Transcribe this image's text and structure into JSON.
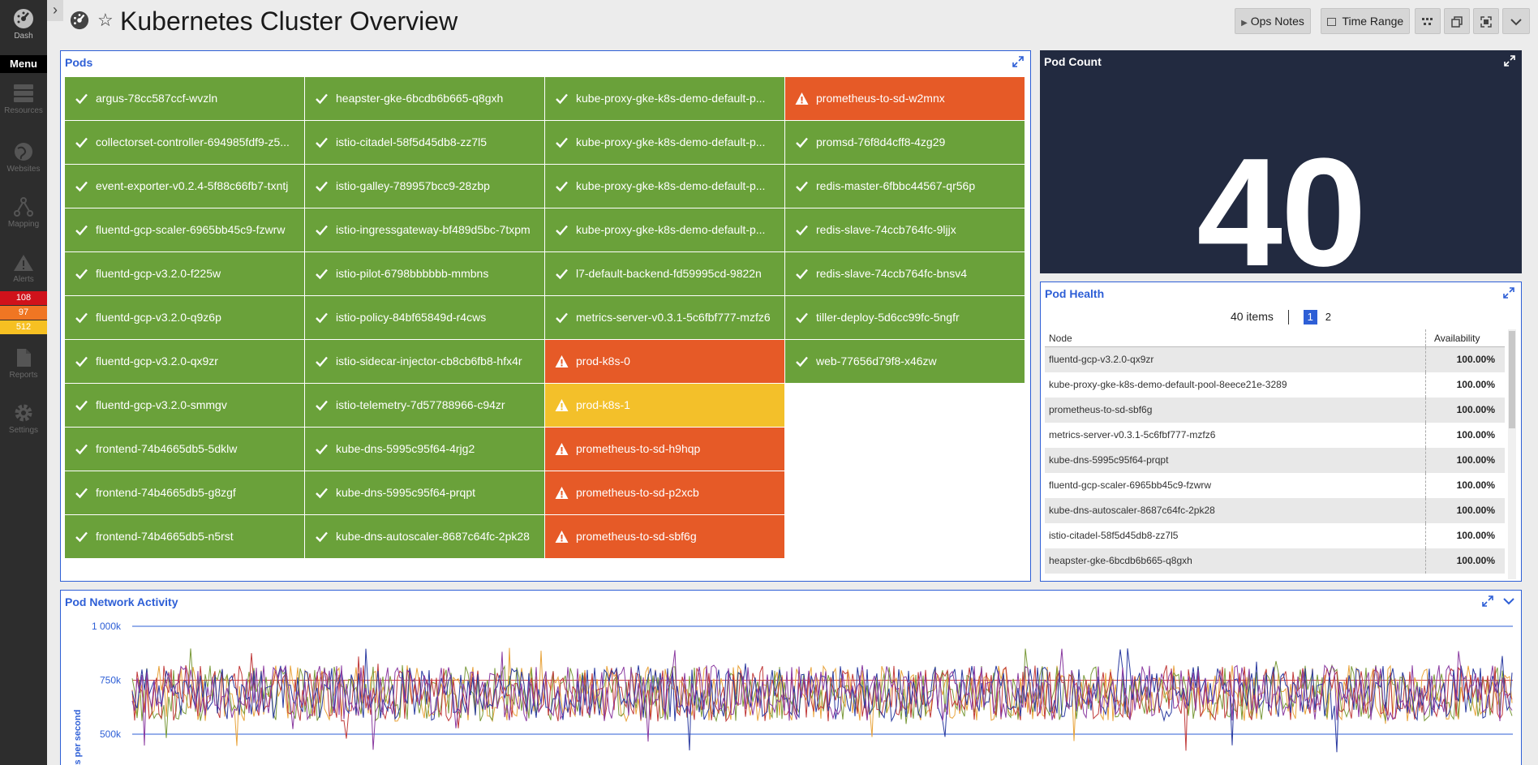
{
  "nav": {
    "dash_label": "Dash",
    "menu_label": "Menu",
    "items": [
      "Resources",
      "Websites",
      "Mapping",
      "Alerts",
      "Reports",
      "Settings"
    ],
    "alert_counts": [
      {
        "value": "108",
        "color": "#d0121b"
      },
      {
        "value": "97",
        "color": "#f07623"
      },
      {
        "value": "512",
        "color": "#f6c022"
      }
    ]
  },
  "header": {
    "title": "Kubernetes Cluster Overview",
    "ops_notes": "Ops Notes",
    "time_range": "Time Range"
  },
  "colors": {
    "ok": "#6aa13a",
    "critical": "#e65a27",
    "warning": "#f3c02a",
    "accent": "#2e5fd6"
  },
  "pods_panel": {
    "title": "Pods",
    "columns": [
      [
        {
          "name": "argus-78cc587ccf-wvzln",
          "status": "ok"
        },
        {
          "name": "collectorset-controller-694985fdf9-z5...",
          "status": "ok"
        },
        {
          "name": "event-exporter-v0.2.4-5f88c66fb7-txntj",
          "status": "ok"
        },
        {
          "name": "fluentd-gcp-scaler-6965bb45c9-fzwrw",
          "status": "ok"
        },
        {
          "name": "fluentd-gcp-v3.2.0-f225w",
          "status": "ok"
        },
        {
          "name": "fluentd-gcp-v3.2.0-q9z6p",
          "status": "ok"
        },
        {
          "name": "fluentd-gcp-v3.2.0-qx9zr",
          "status": "ok"
        },
        {
          "name": "fluentd-gcp-v3.2.0-smmgv",
          "status": "ok"
        },
        {
          "name": "frontend-74b4665db5-5dklw",
          "status": "ok"
        },
        {
          "name": "frontend-74b4665db5-g8zgf",
          "status": "ok"
        },
        {
          "name": "frontend-74b4665db5-n5rst",
          "status": "ok"
        }
      ],
      [
        {
          "name": "heapster-gke-6bcdb6b665-q8gxh",
          "status": "ok"
        },
        {
          "name": "istio-citadel-58f5d45db8-zz7l5",
          "status": "ok"
        },
        {
          "name": "istio-galley-789957bcc9-28zbp",
          "status": "ok"
        },
        {
          "name": "istio-ingressgateway-bf489d5bc-7txpm",
          "status": "ok"
        },
        {
          "name": "istio-pilot-6798bbbbbb-mmbns",
          "status": "ok"
        },
        {
          "name": "istio-policy-84bf65849d-r4cws",
          "status": "ok"
        },
        {
          "name": "istio-sidecar-injector-cb8cb6fb8-hfx4r",
          "status": "ok"
        },
        {
          "name": "istio-telemetry-7d57788966-c94zr",
          "status": "ok"
        },
        {
          "name": "kube-dns-5995c95f64-4rjg2",
          "status": "ok"
        },
        {
          "name": "kube-dns-5995c95f64-prqpt",
          "status": "ok"
        },
        {
          "name": "kube-dns-autoscaler-8687c64fc-2pk28",
          "status": "ok"
        }
      ],
      [
        {
          "name": "kube-proxy-gke-k8s-demo-default-p...",
          "status": "ok"
        },
        {
          "name": "kube-proxy-gke-k8s-demo-default-p...",
          "status": "ok"
        },
        {
          "name": "kube-proxy-gke-k8s-demo-default-p...",
          "status": "ok"
        },
        {
          "name": "kube-proxy-gke-k8s-demo-default-p...",
          "status": "ok"
        },
        {
          "name": "l7-default-backend-fd59995cd-9822n",
          "status": "ok"
        },
        {
          "name": "metrics-server-v0.3.1-5c6fbf777-mzfz6",
          "status": "ok"
        },
        {
          "name": "prod-k8s-0",
          "status": "critical"
        },
        {
          "name": "prod-k8s-1",
          "status": "warning"
        },
        {
          "name": "prometheus-to-sd-h9hqp",
          "status": "critical"
        },
        {
          "name": "prometheus-to-sd-p2xcb",
          "status": "critical"
        },
        {
          "name": "prometheus-to-sd-sbf6g",
          "status": "critical"
        }
      ],
      [
        {
          "name": "prometheus-to-sd-w2mnx",
          "status": "critical"
        },
        {
          "name": "promsd-76f8d4cff8-4zg29",
          "status": "ok"
        },
        {
          "name": "redis-master-6fbbc44567-qr56p",
          "status": "ok"
        },
        {
          "name": "redis-slave-74ccb764fc-9ljjx",
          "status": "ok"
        },
        {
          "name": "redis-slave-74ccb764fc-bnsv4",
          "status": "ok"
        },
        {
          "name": "tiller-deploy-5d6cc99fc-5ngfr",
          "status": "ok"
        },
        {
          "name": "web-77656d79f8-x46zw",
          "status": "ok"
        }
      ]
    ]
  },
  "pod_count": {
    "title": "Pod Count",
    "value": "40"
  },
  "pod_health": {
    "title": "Pod Health",
    "items_label": "40 items",
    "pages": [
      "1",
      "2"
    ],
    "current_page": "1",
    "columns": [
      "Node",
      "Availability"
    ],
    "rows": [
      {
        "node": "fluentd-gcp-v3.2.0-qx9zr",
        "availability": "100.00%"
      },
      {
        "node": "kube-proxy-gke-k8s-demo-default-pool-8eece21e-3289",
        "availability": "100.00%"
      },
      {
        "node": "prometheus-to-sd-sbf6g",
        "availability": "100.00%"
      },
      {
        "node": "metrics-server-v0.3.1-5c6fbf777-mzfz6",
        "availability": "100.00%"
      },
      {
        "node": "kube-dns-5995c95f64-prqpt",
        "availability": "100.00%"
      },
      {
        "node": "fluentd-gcp-scaler-6965bb45c9-fzwrw",
        "availability": "100.00%"
      },
      {
        "node": "kube-dns-autoscaler-8687c64fc-2pk28",
        "availability": "100.00%"
      },
      {
        "node": "istio-citadel-58f5d45db8-zz7l5",
        "availability": "100.00%"
      },
      {
        "node": "heapster-gke-6bcdb6b665-q8gxh",
        "availability": "100.00%"
      }
    ]
  },
  "network_panel": {
    "title": "Pod Network Activity",
    "chart_data": {
      "type": "line",
      "ylabel": "bits per second",
      "yticks": [
        "1 000k",
        "750k",
        "500k"
      ],
      "ytick_values": [
        1000000,
        750000,
        500000
      ],
      "series_colors": [
        "#e8a33a",
        "#7a9a3a",
        "#c03a3a",
        "#2a3aa0",
        "#8a3aa0"
      ],
      "approx_range": [
        500000,
        800000
      ],
      "note_level": 750000
    }
  }
}
